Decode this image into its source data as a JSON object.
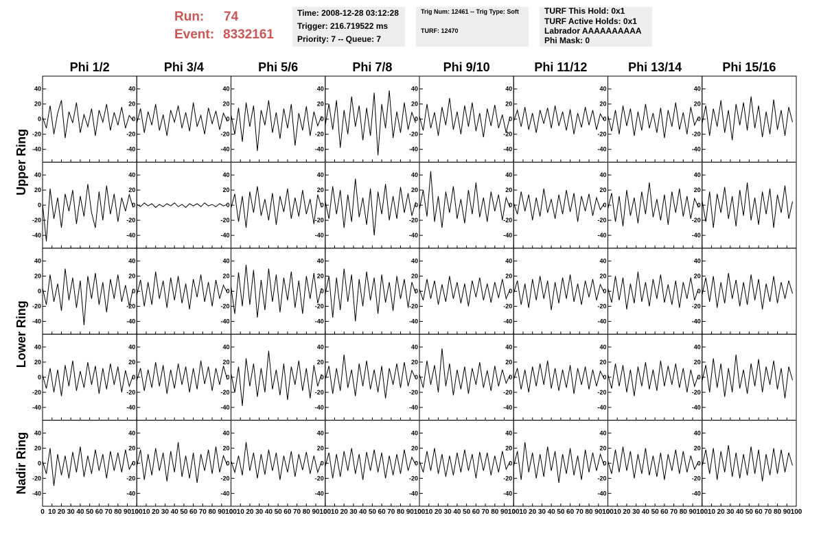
{
  "header": {
    "run": {
      "label": "Run:",
      "value": "74"
    },
    "event": {
      "label": "Event:",
      "value": "8332161"
    },
    "box1": [
      "Time: 2008-12-28 03:12:28",
      "Trigger: 216.719522 ms",
      "Priority: 7 -- Queue: 7"
    ],
    "box2": [
      "Trig Num: 12461 -- Trig Type: Soft",
      "TURF: 12470"
    ],
    "box3": [
      "TURF This Hold: 0x1",
      "TURF Active Holds: 0x1",
      "Labrador AAAAAAAAAA",
      "Phi Mask: 0"
    ]
  },
  "chart_data": {
    "type": "line",
    "color": "#000000",
    "columns": [
      "Phi 1/2",
      "Phi 3/4",
      "Phi 5/6",
      "Phi 7/8",
      "Phi 9/10",
      "Phi 11/12",
      "Phi 13/14",
      "Phi 15/16"
    ],
    "rings": [
      "Upper Ring",
      "Lower Ring",
      "Nadir Ring"
    ],
    "xlim": [
      0,
      100
    ],
    "ylim": [
      -57,
      57
    ],
    "xticks": [
      0,
      10,
      20,
      30,
      40,
      50,
      60,
      70,
      80,
      90,
      100
    ],
    "yticks": [
      -40,
      -20,
      0,
      20,
      40
    ],
    "x": [
      0,
      4,
      8,
      12,
      16,
      20,
      24,
      28,
      32,
      36,
      40,
      44,
      48,
      52,
      56,
      60,
      64,
      68,
      72,
      76,
      80,
      84,
      88,
      92,
      96
    ],
    "panels": [
      {
        "values": [
          3,
          -12,
          18,
          -20,
          8,
          25,
          -25,
          10,
          -5,
          22,
          -18,
          6,
          -10,
          14,
          -22,
          12,
          -4,
          20,
          -15,
          9,
          -8,
          16,
          -12,
          5,
          -2
        ]
      },
      {
        "values": [
          -5,
          14,
          -18,
          10,
          -8,
          20,
          -15,
          6,
          -22,
          12,
          -4,
          18,
          -12,
          9,
          -16,
          22,
          -10,
          5,
          -20,
          15,
          -6,
          11,
          -14,
          8,
          -3
        ]
      },
      {
        "values": [
          6,
          -20,
          15,
          -30,
          22,
          -10,
          18,
          -42,
          12,
          -8,
          25,
          -18,
          9,
          -26,
          14,
          -12,
          20,
          -35,
          8,
          -15,
          17,
          -22,
          10,
          -9,
          4
        ]
      },
      {
        "values": [
          -8,
          20,
          -14,
          25,
          -38,
          12,
          -20,
          30,
          -10,
          18,
          -28,
          15,
          -22,
          35,
          -48,
          20,
          -12,
          38,
          -25,
          10,
          -18,
          22,
          -14,
          9,
          -5
        ]
      },
      {
        "values": [
          4,
          -15,
          20,
          -12,
          9,
          -22,
          16,
          -8,
          28,
          -14,
          10,
          -20,
          18,
          -10,
          22,
          -16,
          8,
          -24,
          14,
          -9,
          19,
          -12,
          6,
          -18,
          3
        ]
      },
      {
        "values": [
          -3,
          12,
          -10,
          16,
          -14,
          8,
          -18,
          12,
          -6,
          15,
          -12,
          18,
          -9,
          10,
          -15,
          13,
          -20,
          8,
          -11,
          16,
          -8,
          12,
          -14,
          7,
          -2
        ]
      },
      {
        "values": [
          5,
          -16,
          12,
          -20,
          18,
          -9,
          14,
          -22,
          10,
          -15,
          20,
          -12,
          8,
          -18,
          15,
          -25,
          12,
          -10,
          22,
          -14,
          9,
          -20,
          16,
          -8,
          3
        ]
      },
      {
        "values": [
          -6,
          18,
          -22,
          14,
          -10,
          25,
          -18,
          12,
          -28,
          20,
          -8,
          22,
          -15,
          30,
          -12,
          18,
          -24,
          10,
          -20,
          26,
          -14,
          12,
          -22,
          16,
          -4
        ]
      },
      {
        "values": [
          2,
          -48,
          22,
          -18,
          10,
          -30,
          15,
          -8,
          20,
          -25,
          12,
          -15,
          28,
          -10,
          -30,
          18,
          -20,
          26,
          -12,
          15,
          -22,
          10,
          -8,
          14,
          -3
        ]
      },
      {
        "values": [
          1,
          -2,
          3,
          -1,
          2,
          -3,
          1,
          -2,
          2,
          -1,
          3,
          -2,
          1,
          -3,
          2,
          -1,
          2,
          -2,
          3,
          -1,
          1,
          -2,
          2,
          -1,
          1
        ]
      },
      {
        "values": [
          -4,
          15,
          -22,
          12,
          -30,
          18,
          -10,
          25,
          -14,
          8,
          -20,
          16,
          -26,
          12,
          -9,
          22,
          -18,
          10,
          -15,
          20,
          -12,
          8,
          -25,
          14,
          -3
        ]
      },
      {
        "values": [
          5,
          -18,
          25,
          -12,
          20,
          -30,
          14,
          -22,
          35,
          -16,
          10,
          -26,
          22,
          -40,
          18,
          -12,
          28,
          -20,
          12,
          -18,
          24,
          -10,
          16,
          -14,
          4
        ]
      },
      {
        "values": [
          -6,
          20,
          -15,
          45,
          -22,
          12,
          -30,
          18,
          -10,
          25,
          -18,
          8,
          -24,
          20,
          -12,
          30,
          -16,
          10,
          -22,
          18,
          -8,
          14,
          -20,
          10,
          -3
        ]
      },
      {
        "values": [
          3,
          -12,
          18,
          -8,
          14,
          -20,
          10,
          -15,
          22,
          -10,
          8,
          -18,
          14,
          -12,
          20,
          -9,
          16,
          -22,
          12,
          -8,
          15,
          -14,
          10,
          -6,
          2
        ]
      },
      {
        "values": [
          -5,
          16,
          -22,
          12,
          -28,
          20,
          -14,
          10,
          -24,
          18,
          -12,
          30,
          -16,
          8,
          -20,
          14,
          -26,
          18,
          -10,
          22,
          -15,
          12,
          -18,
          9,
          -3
        ]
      },
      {
        "values": [
          6,
          -22,
          18,
          -30,
          15,
          -10,
          24,
          -18,
          12,
          -28,
          20,
          -14,
          30,
          -20,
          10,
          -26,
          18,
          -12,
          22,
          -30,
          14,
          -10,
          26,
          -18,
          5
        ]
      },
      {
        "values": [
          4,
          -18,
          22,
          -14,
          10,
          -26,
          30,
          -12,
          18,
          -22,
          14,
          -45,
          20,
          -10,
          24,
          -18,
          12,
          -28,
          16,
          -10,
          22,
          -14,
          8,
          -20,
          3
        ]
      },
      {
        "values": [
          -5,
          15,
          -20,
          12,
          -18,
          26,
          -10,
          14,
          -22,
          18,
          -12,
          20,
          -16,
          10,
          -24,
          16,
          -8,
          22,
          -14,
          12,
          -20,
          15,
          -10,
          8,
          -2
        ]
      },
      {
        "values": [
          6,
          -30,
          25,
          -20,
          35,
          -18,
          28,
          -35,
          15,
          -25,
          30,
          -14,
          22,
          -28,
          18,
          -12,
          26,
          -22,
          14,
          -30,
          20,
          -10,
          24,
          -16,
          4
        ]
      },
      {
        "values": [
          -4,
          20,
          -35,
          18,
          -25,
          30,
          -14,
          22,
          -40,
          16,
          -20,
          26,
          -12,
          18,
          -30,
          22,
          -15,
          12,
          -26,
          20,
          -10,
          16,
          -22,
          12,
          -3
        ]
      },
      {
        "values": [
          3,
          -12,
          16,
          -10,
          14,
          -18,
          9,
          -14,
          20,
          -10,
          12,
          -16,
          10,
          -20,
          14,
          -8,
          18,
          -12,
          10,
          -15,
          12,
          -9,
          16,
          -10,
          2
        ]
      },
      {
        "values": [
          -3,
          14,
          -18,
          10,
          -22,
          16,
          -12,
          20,
          -10,
          14,
          -25,
          12,
          -16,
          18,
          -10,
          22,
          -14,
          10,
          -18,
          14,
          -8,
          16,
          -12,
          9,
          -2
        ]
      },
      {
        "values": [
          4,
          -15,
          20,
          -12,
          18,
          -24,
          10,
          -16,
          26,
          -14,
          12,
          -20,
          16,
          -10,
          22,
          -15,
          9,
          -18,
          14,
          -22,
          12,
          -10,
          18,
          -12,
          3
        ]
      },
      {
        "values": [
          -5,
          18,
          -14,
          20,
          -22,
          12,
          -16,
          24,
          -10,
          15,
          -20,
          12,
          -18,
          22,
          -12,
          16,
          -24,
          10,
          -14,
          20,
          -16,
          12,
          -10,
          14,
          -3
        ]
      },
      {
        "values": [
          3,
          -15,
          12,
          -20,
          10,
          -25,
          16,
          -12,
          22,
          -18,
          8,
          -14,
          20,
          -10,
          15,
          -22,
          12,
          -16,
          18,
          -10,
          14,
          -20,
          9,
          -12,
          2
        ]
      },
      {
        "values": [
          -4,
          12,
          -18,
          10,
          -14,
          20,
          -12,
          16,
          -22,
          10,
          -15,
          18,
          -10,
          14,
          -20,
          12,
          -16,
          22,
          -9,
          14,
          -18,
          12,
          -10,
          15,
          -3
        ]
      },
      {
        "values": [
          5,
          -20,
          14,
          -38,
          25,
          -12,
          18,
          -26,
          12,
          -20,
          35,
          -16,
          10,
          -24,
          18,
          -30,
          14,
          -10,
          22,
          -18,
          12,
          -28,
          16,
          -12,
          4
        ]
      },
      {
        "values": [
          -3,
          15,
          -22,
          12,
          -18,
          30,
          -14,
          10,
          -25,
          18,
          -12,
          22,
          -16,
          10,
          -20,
          15,
          -28,
          12,
          -10,
          18,
          -14,
          20,
          -12,
          9,
          -2
        ]
      },
      {
        "values": [
          4,
          -14,
          22,
          -10,
          16,
          -20,
          38,
          -12,
          18,
          -24,
          10,
          -16,
          14,
          -22,
          12,
          -10,
          20,
          -14,
          9,
          -18,
          15,
          -12,
          10,
          -8,
          3
        ]
      },
      {
        "values": [
          -3,
          12,
          -16,
          10,
          -20,
          14,
          -12,
          18,
          -10,
          22,
          -15,
          12,
          -18,
          10,
          -14,
          16,
          -22,
          12,
          -10,
          14,
          -16,
          10,
          -12,
          8,
          -2
        ]
      },
      {
        "values": [
          4,
          -15,
          18,
          -12,
          16,
          -20,
          10,
          -25,
          14,
          -12,
          20,
          -16,
          10,
          -18,
          22,
          -12,
          15,
          -10,
          18,
          -14,
          12,
          -20,
          10,
          -12,
          3
        ]
      },
      {
        "values": [
          -5,
          16,
          -20,
          25,
          -14,
          18,
          -26,
          12,
          -20,
          30,
          -15,
          10,
          -22,
          18,
          -12,
          24,
          -20,
          14,
          -10,
          22,
          -16,
          12,
          -28,
          14,
          -4
        ]
      },
      {
        "values": [
          3,
          -14,
          20,
          -30,
          12,
          -16,
          10,
          -20,
          15,
          -12,
          22,
          -18,
          10,
          -14,
          18,
          -10,
          12,
          -20,
          16,
          -10,
          14,
          -12,
          18,
          -8,
          2
        ]
      },
      {
        "values": [
          -4,
          18,
          -22,
          12,
          -16,
          20,
          -10,
          14,
          -24,
          16,
          -12,
          28,
          -18,
          10,
          -20,
          14,
          -26,
          12,
          -10,
          18,
          -14,
          22,
          -12,
          10,
          -3
        ]
      },
      {
        "values": [
          3,
          -12,
          10,
          -16,
          28,
          -10,
          14,
          -20,
          12,
          -15,
          18,
          -10,
          14,
          -22,
          10,
          -12,
          16,
          -18,
          12,
          -9,
          15,
          -14,
          10,
          -12,
          2
        ]
      },
      {
        "values": [
          -4,
          14,
          -20,
          12,
          -18,
          16,
          -10,
          20,
          -14,
          12,
          -22,
          15,
          -10,
          18,
          -12,
          14,
          -20,
          10,
          -16,
          12,
          -14,
          18,
          -10,
          8,
          -2
        ]
      },
      {
        "values": [
          3,
          -12,
          16,
          -10,
          20,
          -14,
          12,
          -18,
          10,
          -16,
          14,
          -12,
          18,
          -10,
          12,
          -20,
          15,
          -10,
          14,
          -16,
          10,
          -12,
          16,
          -8,
          2
        ]
      },
      {
        "values": [
          -4,
          16,
          -22,
          28,
          -12,
          14,
          -20,
          12,
          -18,
          22,
          -10,
          16,
          -26,
          12,
          -14,
          20,
          -16,
          10,
          -22,
          18,
          -12,
          14,
          -10,
          12,
          -3
        ]
      },
      {
        "values": [
          3,
          -14,
          18,
          -12,
          22,
          -10,
          16,
          -20,
          12,
          -14,
          20,
          -16,
          10,
          -18,
          14,
          -22,
          12,
          -10,
          18,
          -14,
          16,
          -12,
          10,
          -8,
          2
        ]
      },
      {
        "values": [
          -4,
          18,
          -14,
          20,
          -22,
          16,
          -12,
          24,
          -18,
          14,
          -20,
          12,
          -16,
          22,
          -14,
          18,
          -24,
          12,
          -16,
          20,
          -14,
          18,
          -12,
          14,
          -3
        ]
      }
    ]
  }
}
